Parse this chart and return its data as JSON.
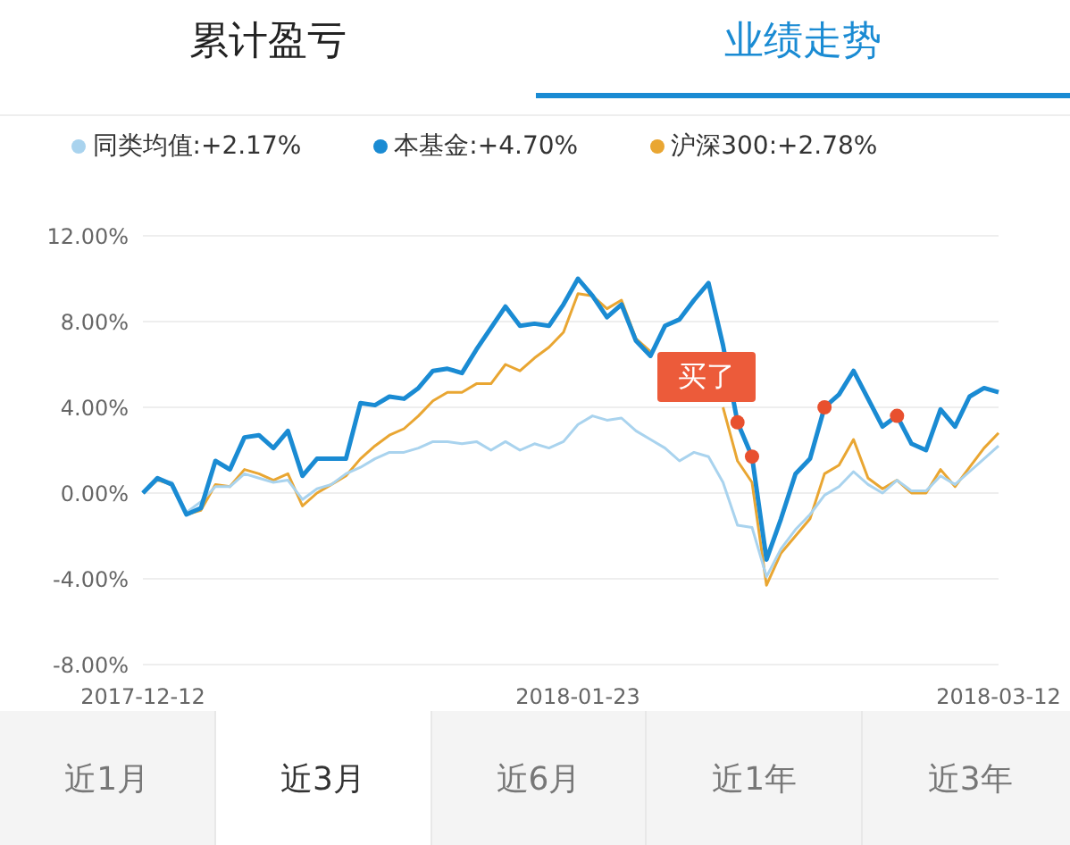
{
  "chart_data": {
    "type": "line",
    "categories": [
      "2017-12-12",
      null,
      null,
      null,
      null,
      null,
      null,
      null,
      null,
      null,
      null,
      null,
      null,
      null,
      null,
      null,
      null,
      null,
      null,
      null,
      null,
      null,
      null,
      null,
      null,
      null,
      null,
      null,
      null,
      null,
      "2018-01-23",
      null,
      null,
      null,
      null,
      null,
      null,
      null,
      null,
      null,
      null,
      null,
      null,
      null,
      null,
      null,
      null,
      null,
      null,
      null,
      null,
      null,
      null,
      null,
      null,
      null,
      null,
      null,
      null,
      "2018-03-12"
    ],
    "series": [
      {
        "name": "本基金:+4.70%",
        "color": "#1a8bd3",
        "values": [
          0,
          0.7,
          0.4,
          -1.0,
          -0.7,
          1.5,
          1.1,
          2.6,
          2.7,
          2.1,
          2.9,
          0.8,
          1.6,
          1.6,
          1.6,
          4.2,
          4.1,
          4.5,
          4.4,
          4.9,
          5.7,
          5.8,
          5.6,
          6.7,
          7.7,
          8.7,
          7.8,
          7.9,
          7.8,
          8.8,
          10.0,
          9.2,
          8.2,
          8.8,
          7.1,
          6.4,
          7.8,
          8.1,
          9.0,
          9.8,
          6.9,
          3.3,
          1.7,
          -3.1,
          -1.2,
          0.9,
          1.6,
          4.0,
          4.6,
          5.7,
          4.4,
          3.1,
          3.6,
          2.3,
          2.0,
          3.9,
          3.1,
          4.5,
          4.9,
          4.7
        ]
      },
      {
        "name": "同类均值:+2.17%",
        "color": "#a9d3ee",
        "values": [
          0,
          0.6,
          0.5,
          -0.9,
          -0.4,
          0.3,
          0.3,
          0.9,
          0.7,
          0.5,
          0.6,
          -0.3,
          0.2,
          0.4,
          0.9,
          1.2,
          1.6,
          1.9,
          1.9,
          2.1,
          2.4,
          2.4,
          2.3,
          2.4,
          2.0,
          2.4,
          2.0,
          2.3,
          2.1,
          2.4,
          3.2,
          3.6,
          3.4,
          3.5,
          2.9,
          2.5,
          2.1,
          1.5,
          1.9,
          1.7,
          0.5,
          -1.5,
          -1.6,
          -3.9,
          -2.6,
          -1.7,
          -1.0,
          -0.1,
          0.3,
          1.0,
          0.4,
          0.0,
          0.6,
          0.1,
          0.1,
          0.8,
          0.4,
          1.0,
          1.6,
          2.2
        ]
      },
      {
        "name": "沪深300:+2.78%",
        "color": "#e9a632",
        "values": [
          0,
          0.6,
          0.4,
          -1.0,
          -0.8,
          0.4,
          0.3,
          1.1,
          0.9,
          0.6,
          0.9,
          -0.6,
          0.0,
          0.4,
          0.8,
          1.6,
          2.2,
          2.7,
          3.0,
          3.6,
          4.3,
          4.7,
          4.7,
          5.1,
          5.1,
          6.0,
          5.7,
          6.3,
          6.8,
          7.5,
          9.3,
          9.2,
          8.6,
          9.0,
          7.2,
          6.6,
          null,
          null,
          null,
          null,
          4.0,
          1.5,
          0.5,
          -4.3,
          -2.8,
          -2.0,
          -1.2,
          0.9,
          1.3,
          2.5,
          0.7,
          0.2,
          0.6,
          0.0,
          0.0,
          1.1,
          0.3,
          1.2,
          2.1,
          2.8
        ]
      },
      {
        "type": "scatter",
        "marker": "circle",
        "color": "#e8502e",
        "values": [
          null,
          null,
          null,
          null,
          null,
          null,
          null,
          null,
          null,
          null,
          null,
          null,
          null,
          null,
          null,
          null,
          null,
          null,
          null,
          null,
          null,
          null,
          null,
          null,
          null,
          null,
          null,
          null,
          null,
          null,
          null,
          null,
          null,
          null,
          null,
          null,
          null,
          null,
          null,
          null,
          null,
          3.3,
          1.7,
          null,
          null,
          null,
          null,
          4.0,
          null,
          null,
          null,
          null,
          3.6,
          null,
          null,
          null,
          null,
          null,
          null,
          null
        ]
      }
    ],
    "ylim": [
      -8,
      12
    ],
    "yticks": [
      {
        "value": -8,
        "label": "-8.00%"
      },
      {
        "value": -4,
        "label": "-4.00%"
      },
      {
        "value": 0,
        "label": "0.00%"
      },
      {
        "value": 4,
        "label": "4.00%"
      },
      {
        "value": 8,
        "label": "8.00%"
      },
      {
        "value": 12,
        "label": "12.00%"
      }
    ],
    "grid": "y",
    "legend": "top",
    "marker": "none",
    "annotations": [
      "累计盈亏",
      "业绩走势",
      "买了",
      "近1月",
      "近3月",
      "近6月",
      "近1年",
      "近3年"
    ]
  }
}
